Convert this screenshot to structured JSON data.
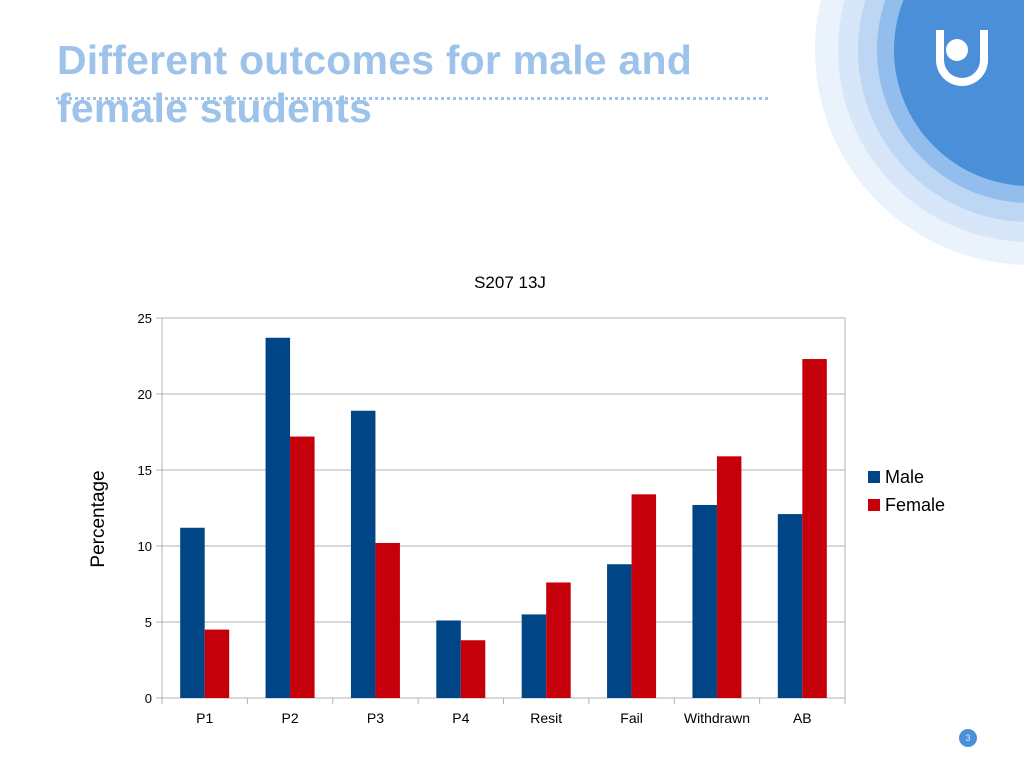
{
  "slide": {
    "title": "Different outcomes for male and female students",
    "page_number": "3"
  },
  "colors": {
    "title": "#9dc3ea",
    "male": "#004586",
    "female": "#c5000b",
    "grid": "#b3b3b3",
    "logo_blue": "#4a8fd8"
  },
  "logo": {
    "icon": "open-university-logo-icon"
  },
  "chart_data": {
    "type": "bar",
    "title": "S207 13J",
    "xlabel": "",
    "ylabel": "Percentage",
    "ylim": [
      0,
      25
    ],
    "yticks": [
      0,
      5,
      10,
      15,
      20,
      25
    ],
    "grid": true,
    "legend_position": "right",
    "categories": [
      "P1",
      "P2",
      "P3",
      "P4",
      "Resit",
      "Fail",
      "Withdrawn",
      "AB"
    ],
    "series": [
      {
        "name": "Male",
        "color": "#004586",
        "values": [
          11.2,
          23.7,
          18.9,
          5.1,
          5.5,
          8.8,
          12.7,
          12.1
        ]
      },
      {
        "name": "Female",
        "color": "#c5000b",
        "values": [
          4.5,
          17.2,
          10.2,
          3.8,
          7.6,
          13.4,
          15.9,
          22.3
        ]
      }
    ]
  }
}
